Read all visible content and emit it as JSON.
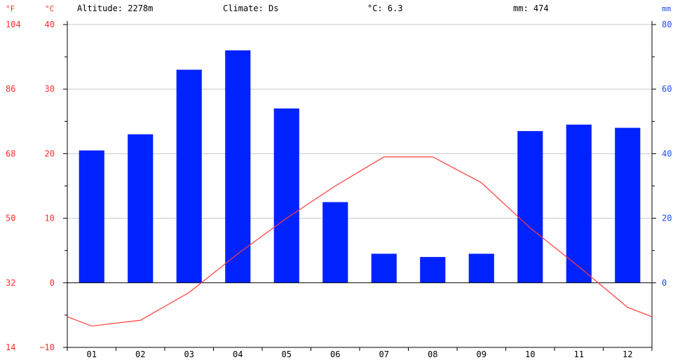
{
  "header": {
    "altitude": "Altitude: 2278m",
    "climate": "Climate: Ds",
    "temp_avg": "°C: 6.3",
    "precip_total": "mm: 474"
  },
  "units": {
    "fahrenheit": "°F",
    "celsius": "°C",
    "mm": "mm"
  },
  "colors": {
    "temperature": "#ff3b3b",
    "precipitation": "#0022ff",
    "axis_red": "#ff2b2b",
    "axis_blue": "#1f4cff",
    "grid": "#c8c8c8"
  },
  "chart_data": {
    "type": "bar",
    "categories": [
      "01",
      "02",
      "03",
      "04",
      "05",
      "06",
      "07",
      "08",
      "09",
      "10",
      "11",
      "12"
    ],
    "series": [
      {
        "values": [
          41,
          46,
          66,
          72,
          54,
          25,
          9,
          8,
          9,
          47,
          49,
          48
        ]
      },
      {
        "values": [
          -6.7,
          -5.8,
          -1.5,
          4.5,
          10,
          15,
          19.5,
          19.5,
          15.5,
          8.5,
          2.5,
          -3.8
        ]
      }
    ],
    "left_axis_celsius": {
      "ticks": [
        "40",
        "30",
        "20",
        "10",
        "0",
        "−10"
      ],
      "ylim": [
        -10,
        40
      ]
    },
    "left_axis_fahrenheit": {
      "ticks": [
        "104",
        "86",
        "68",
        "50",
        "32",
        "14"
      ],
      "ylim": [
        14,
        104
      ]
    },
    "right_axis_mm": {
      "ticks": [
        "80",
        "60",
        "40",
        "20",
        "0"
      ],
      "ylim": [
        0,
        80
      ]
    },
    "grid": true
  }
}
